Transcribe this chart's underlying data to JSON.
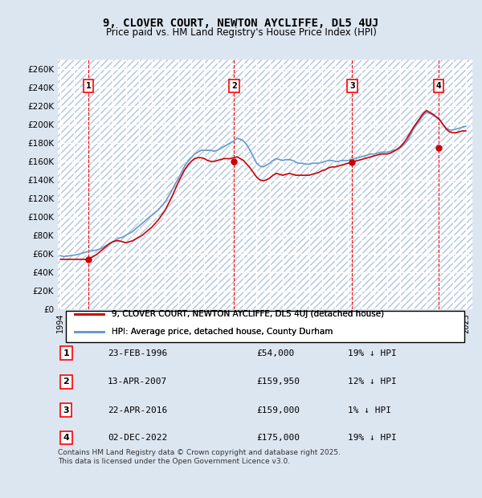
{
  "title": "9, CLOVER COURT, NEWTON AYCLIFFE, DL5 4UJ",
  "subtitle": "Price paid vs. HM Land Registry's House Price Index (HPI)",
  "ylabel": "",
  "background_color": "#dce6f1",
  "plot_bg_color": "#dce6f1",
  "grid_color": "#ffffff",
  "hatch_color": "#c0cfe0",
  "ylim": [
    0,
    270000
  ],
  "yticks": [
    0,
    20000,
    40000,
    60000,
    80000,
    100000,
    120000,
    140000,
    160000,
    180000,
    200000,
    220000,
    240000,
    260000
  ],
  "ytick_labels": [
    "£0",
    "£20K",
    "£40K",
    "£60K",
    "£80K",
    "£100K",
    "£120K",
    "£140K",
    "£160K",
    "£180K",
    "£200K",
    "£220K",
    "£240K",
    "£260K"
  ],
  "legend_label_red": "9, CLOVER COURT, NEWTON AYCLIFFE, DL5 4UJ (detached house)",
  "legend_label_blue": "HPI: Average price, detached house, County Durham",
  "footer": "Contains HM Land Registry data © Crown copyright and database right 2025.\nThis data is licensed under the Open Government Licence v3.0.",
  "transactions": [
    {
      "num": 1,
      "date": "23-FEB-1996",
      "price": 54000,
      "pct": "19%",
      "dir": "↓",
      "year": 1996.14
    },
    {
      "num": 2,
      "date": "13-APR-2007",
      "price": 159950,
      "pct": "12%",
      "dir": "↓",
      "year": 2007.28
    },
    {
      "num": 3,
      "date": "22-APR-2016",
      "price": 159000,
      "pct": "1%",
      "dir": "↓",
      "year": 2016.31
    },
    {
      "num": 4,
      "date": "02-DEC-2022",
      "price": 175000,
      "pct": "19%",
      "dir": "↓",
      "year": 2022.92
    }
  ],
  "hpi_x": [
    1994.0,
    1994.25,
    1994.5,
    1994.75,
    1995.0,
    1995.25,
    1995.5,
    1995.75,
    1996.0,
    1996.25,
    1996.5,
    1996.75,
    1997.0,
    1997.25,
    1997.5,
    1997.75,
    1998.0,
    1998.25,
    1998.5,
    1998.75,
    1999.0,
    1999.25,
    1999.5,
    1999.75,
    2000.0,
    2000.25,
    2000.5,
    2000.75,
    2001.0,
    2001.25,
    2001.5,
    2001.75,
    2002.0,
    2002.25,
    2002.5,
    2002.75,
    2003.0,
    2003.25,
    2003.5,
    2003.75,
    2004.0,
    2004.25,
    2004.5,
    2004.75,
    2005.0,
    2005.25,
    2005.5,
    2005.75,
    2006.0,
    2006.25,
    2006.5,
    2006.75,
    2007.0,
    2007.25,
    2007.5,
    2007.75,
    2008.0,
    2008.25,
    2008.5,
    2008.75,
    2009.0,
    2009.25,
    2009.5,
    2009.75,
    2010.0,
    2010.25,
    2010.5,
    2010.75,
    2011.0,
    2011.25,
    2011.5,
    2011.75,
    2012.0,
    2012.25,
    2012.5,
    2012.75,
    2013.0,
    2013.25,
    2013.5,
    2013.75,
    2014.0,
    2014.25,
    2014.5,
    2014.75,
    2015.0,
    2015.25,
    2015.5,
    2015.75,
    2016.0,
    2016.25,
    2016.5,
    2016.75,
    2017.0,
    2017.25,
    2017.5,
    2017.75,
    2018.0,
    2018.25,
    2018.5,
    2018.75,
    2019.0,
    2019.25,
    2019.5,
    2019.75,
    2020.0,
    2020.25,
    2020.5,
    2020.75,
    2021.0,
    2021.25,
    2021.5,
    2021.75,
    2022.0,
    2022.25,
    2022.5,
    2022.75,
    2023.0,
    2023.25,
    2023.5,
    2023.75,
    2024.0,
    2024.25,
    2024.5,
    2024.75,
    2025.0
  ],
  "hpi_y": [
    58000,
    57000,
    57500,
    58000,
    58500,
    59000,
    60000,
    61000,
    62000,
    63000,
    63500,
    64000,
    65000,
    67000,
    69000,
    71000,
    73000,
    75000,
    77000,
    78000,
    80000,
    82000,
    84000,
    87000,
    90000,
    93000,
    96000,
    99000,
    102000,
    105000,
    108000,
    112000,
    116000,
    122000,
    128000,
    135000,
    141000,
    148000,
    155000,
    160000,
    164000,
    168000,
    170000,
    172000,
    172000,
    172000,
    172000,
    171000,
    172000,
    174000,
    176000,
    178000,
    180000,
    182000,
    185000,
    184000,
    182000,
    178000,
    172000,
    165000,
    158000,
    155000,
    154000,
    156000,
    158000,
    161000,
    163000,
    162000,
    161000,
    162000,
    162000,
    161000,
    159000,
    158000,
    158000,
    157000,
    157000,
    158000,
    158000,
    158000,
    159000,
    160000,
    161000,
    161000,
    160000,
    160000,
    161000,
    161000,
    161000,
    162000,
    163000,
    164000,
    165000,
    166000,
    167000,
    168000,
    168000,
    169000,
    170000,
    170000,
    170000,
    171000,
    172000,
    173000,
    175000,
    178000,
    182000,
    188000,
    195000,
    200000,
    205000,
    210000,
    213000,
    212000,
    210000,
    208000,
    205000,
    200000,
    196000,
    194000,
    194000,
    195000,
    196000,
    197000,
    198000
  ],
  "price_x": [
    1994.0,
    1994.25,
    1994.5,
    1994.75,
    1995.0,
    1995.25,
    1995.5,
    1995.75,
    1996.0,
    1996.25,
    1996.5,
    1996.75,
    1997.0,
    1997.25,
    1997.5,
    1997.75,
    1998.0,
    1998.25,
    1998.5,
    1998.75,
    1999.0,
    1999.25,
    1999.5,
    1999.75,
    2000.0,
    2000.25,
    2000.5,
    2000.75,
    2001.0,
    2001.25,
    2001.5,
    2001.75,
    2002.0,
    2002.25,
    2002.5,
    2002.75,
    2003.0,
    2003.25,
    2003.5,
    2003.75,
    2004.0,
    2004.25,
    2004.5,
    2004.75,
    2005.0,
    2005.25,
    2005.5,
    2005.75,
    2006.0,
    2006.25,
    2006.5,
    2006.75,
    2007.0,
    2007.25,
    2007.5,
    2007.75,
    2008.0,
    2008.25,
    2008.5,
    2008.75,
    2009.0,
    2009.25,
    2009.5,
    2009.75,
    2010.0,
    2010.25,
    2010.5,
    2010.75,
    2011.0,
    2011.25,
    2011.5,
    2011.75,
    2012.0,
    2012.25,
    2012.5,
    2012.75,
    2013.0,
    2013.25,
    2013.5,
    2013.75,
    2014.0,
    2014.25,
    2014.5,
    2014.75,
    2015.0,
    2015.25,
    2015.5,
    2015.75,
    2016.0,
    2016.25,
    2016.5,
    2016.75,
    2017.0,
    2017.25,
    2017.5,
    2017.75,
    2018.0,
    2018.25,
    2018.5,
    2018.75,
    2019.0,
    2019.25,
    2019.5,
    2019.75,
    2020.0,
    2020.25,
    2020.5,
    2020.75,
    2021.0,
    2021.25,
    2021.5,
    2021.75,
    2022.0,
    2022.25,
    2022.5,
    2022.75,
    2023.0,
    2023.25,
    2023.5,
    2023.75,
    2024.0,
    2024.25,
    2024.5,
    2024.75,
    2025.0
  ],
  "price_y": [
    54000,
    54000,
    54000,
    54000,
    54000,
    54000,
    54000,
    54000,
    54000,
    55000,
    57000,
    59000,
    62000,
    65000,
    68000,
    71000,
    73000,
    74000,
    74000,
    73000,
    72000,
    73000,
    74000,
    76000,
    78000,
    80000,
    83000,
    86000,
    89000,
    93000,
    97000,
    102000,
    107000,
    114000,
    121000,
    129000,
    137000,
    144000,
    151000,
    156000,
    160000,
    163000,
    164000,
    164000,
    163000,
    161000,
    160000,
    160000,
    161000,
    162000,
    163000,
    163000,
    163000,
    164000,
    165000,
    163000,
    161000,
    157000,
    153000,
    148000,
    143000,
    140000,
    139000,
    140000,
    142000,
    145000,
    147000,
    146000,
    145000,
    146000,
    147000,
    146000,
    145000,
    145000,
    145000,
    145000,
    145000,
    146000,
    147000,
    148000,
    150000,
    151000,
    153000,
    154000,
    154000,
    155000,
    156000,
    157000,
    158000,
    159000,
    160000,
    161000,
    162000,
    163000,
    164000,
    165000,
    166000,
    167000,
    168000,
    168000,
    168000,
    169000,
    171000,
    173000,
    176000,
    180000,
    185000,
    191000,
    197000,
    202000,
    207000,
    212000,
    215000,
    213000,
    211000,
    208000,
    205000,
    200000,
    195000,
    192000,
    191000,
    191000,
    192000,
    193000,
    193000
  ]
}
